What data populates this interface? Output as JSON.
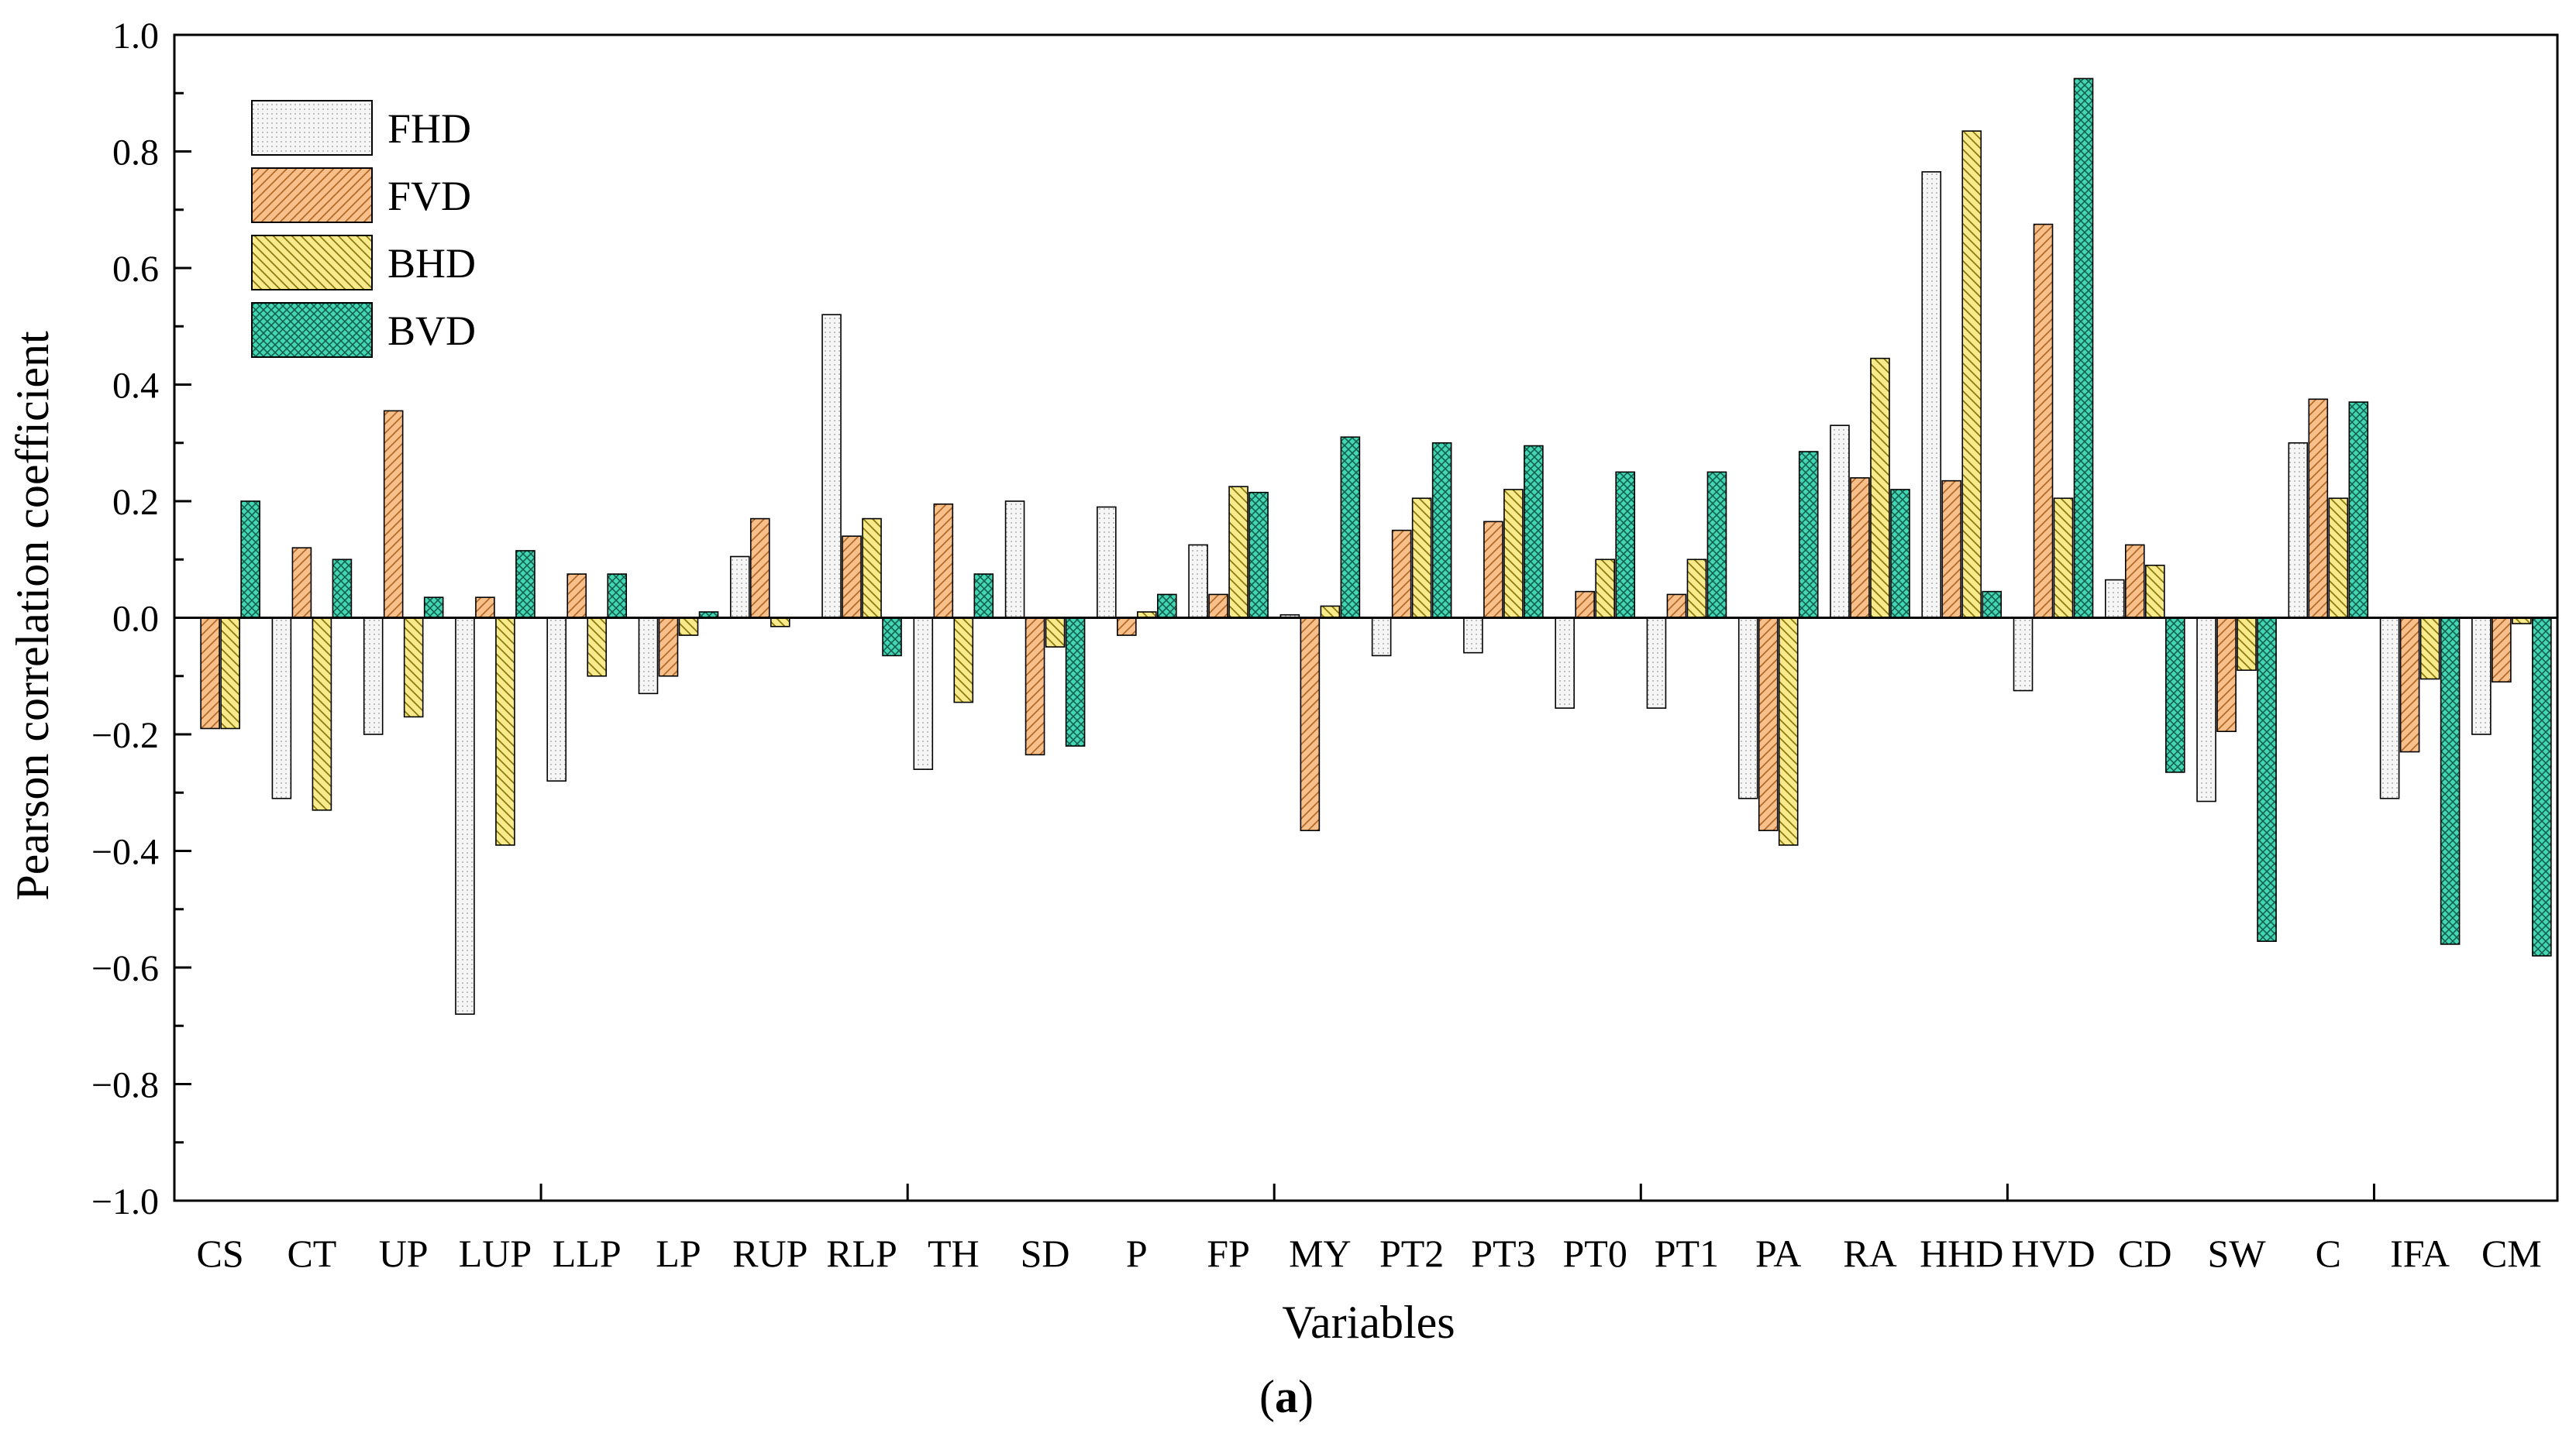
{
  "chart_data": {
    "type": "bar",
    "title": "",
    "xlabel": "Variables",
    "ylabel": "Pearson correlation coefficient",
    "caption_label": "a",
    "ylim": [
      -1.0,
      1.0
    ],
    "yticks": [
      "−1.0",
      "−0.8",
      "−0.6",
      "−0.4",
      "−0.2",
      "0.0",
      "0.2",
      "0.4",
      "0.6",
      "0.8",
      "1.0"
    ],
    "ytick_values": [
      -1.0,
      -0.8,
      -0.6,
      -0.4,
      -0.2,
      0.0,
      0.2,
      0.4,
      0.6,
      0.8,
      1.0
    ],
    "legend_position": "top-left",
    "categories": [
      "CS",
      "CT",
      "UP",
      "LUP",
      "LLP",
      "LP",
      "RUP",
      "RLP",
      "TH",
      "SD",
      "P",
      "FP",
      "MY",
      "PT2",
      "PT3",
      "PT0",
      "PT1",
      "PA",
      "RA",
      "HHD",
      "HVD",
      "CD",
      "SW",
      "C",
      "IFA",
      "CM"
    ],
    "series": [
      {
        "name": "FHD",
        "color": "#f4f4f4",
        "pattern": "dots",
        "values": [
          0.0,
          -0.31,
          -0.2,
          -0.68,
          -0.28,
          -0.13,
          0.105,
          0.52,
          -0.26,
          0.2,
          0.19,
          0.125,
          0.005,
          -0.065,
          -0.06,
          -0.155,
          -0.155,
          -0.31,
          0.33,
          0.765,
          -0.125,
          0.065,
          -0.315,
          0.3,
          -0.31,
          -0.2
        ]
      },
      {
        "name": "FVD",
        "color": "#f7c08a",
        "pattern": "back-diagonal",
        "values": [
          -0.19,
          0.12,
          0.355,
          0.035,
          0.075,
          -0.1,
          0.17,
          0.14,
          0.195,
          -0.235,
          -0.03,
          0.04,
          -0.365,
          0.15,
          0.165,
          0.045,
          0.04,
          -0.365,
          0.24,
          0.235,
          0.675,
          0.125,
          -0.195,
          0.375,
          -0.23,
          -0.11
        ]
      },
      {
        "name": "BHD",
        "color": "#f9ea8c",
        "pattern": "forward-diagonal",
        "values": [
          -0.19,
          -0.33,
          -0.17,
          -0.39,
          -0.1,
          -0.03,
          -0.015,
          0.17,
          -0.145,
          -0.05,
          0.01,
          0.225,
          0.02,
          0.205,
          0.22,
          0.1,
          0.1,
          -0.39,
          0.445,
          0.835,
          0.205,
          0.09,
          -0.09,
          0.205,
          -0.105,
          -0.01
        ]
      },
      {
        "name": "BVD",
        "color": "#43d6b4",
        "pattern": "crosshatch",
        "values": [
          0.2,
          0.1,
          0.035,
          0.115,
          0.075,
          0.01,
          0.0,
          -0.065,
          0.075,
          -0.22,
          0.04,
          0.215,
          0.31,
          0.3,
          0.295,
          0.25,
          0.25,
          0.285,
          0.22,
          0.045,
          0.925,
          -0.265,
          -0.555,
          0.37,
          -0.56,
          -0.58
        ]
      }
    ]
  }
}
